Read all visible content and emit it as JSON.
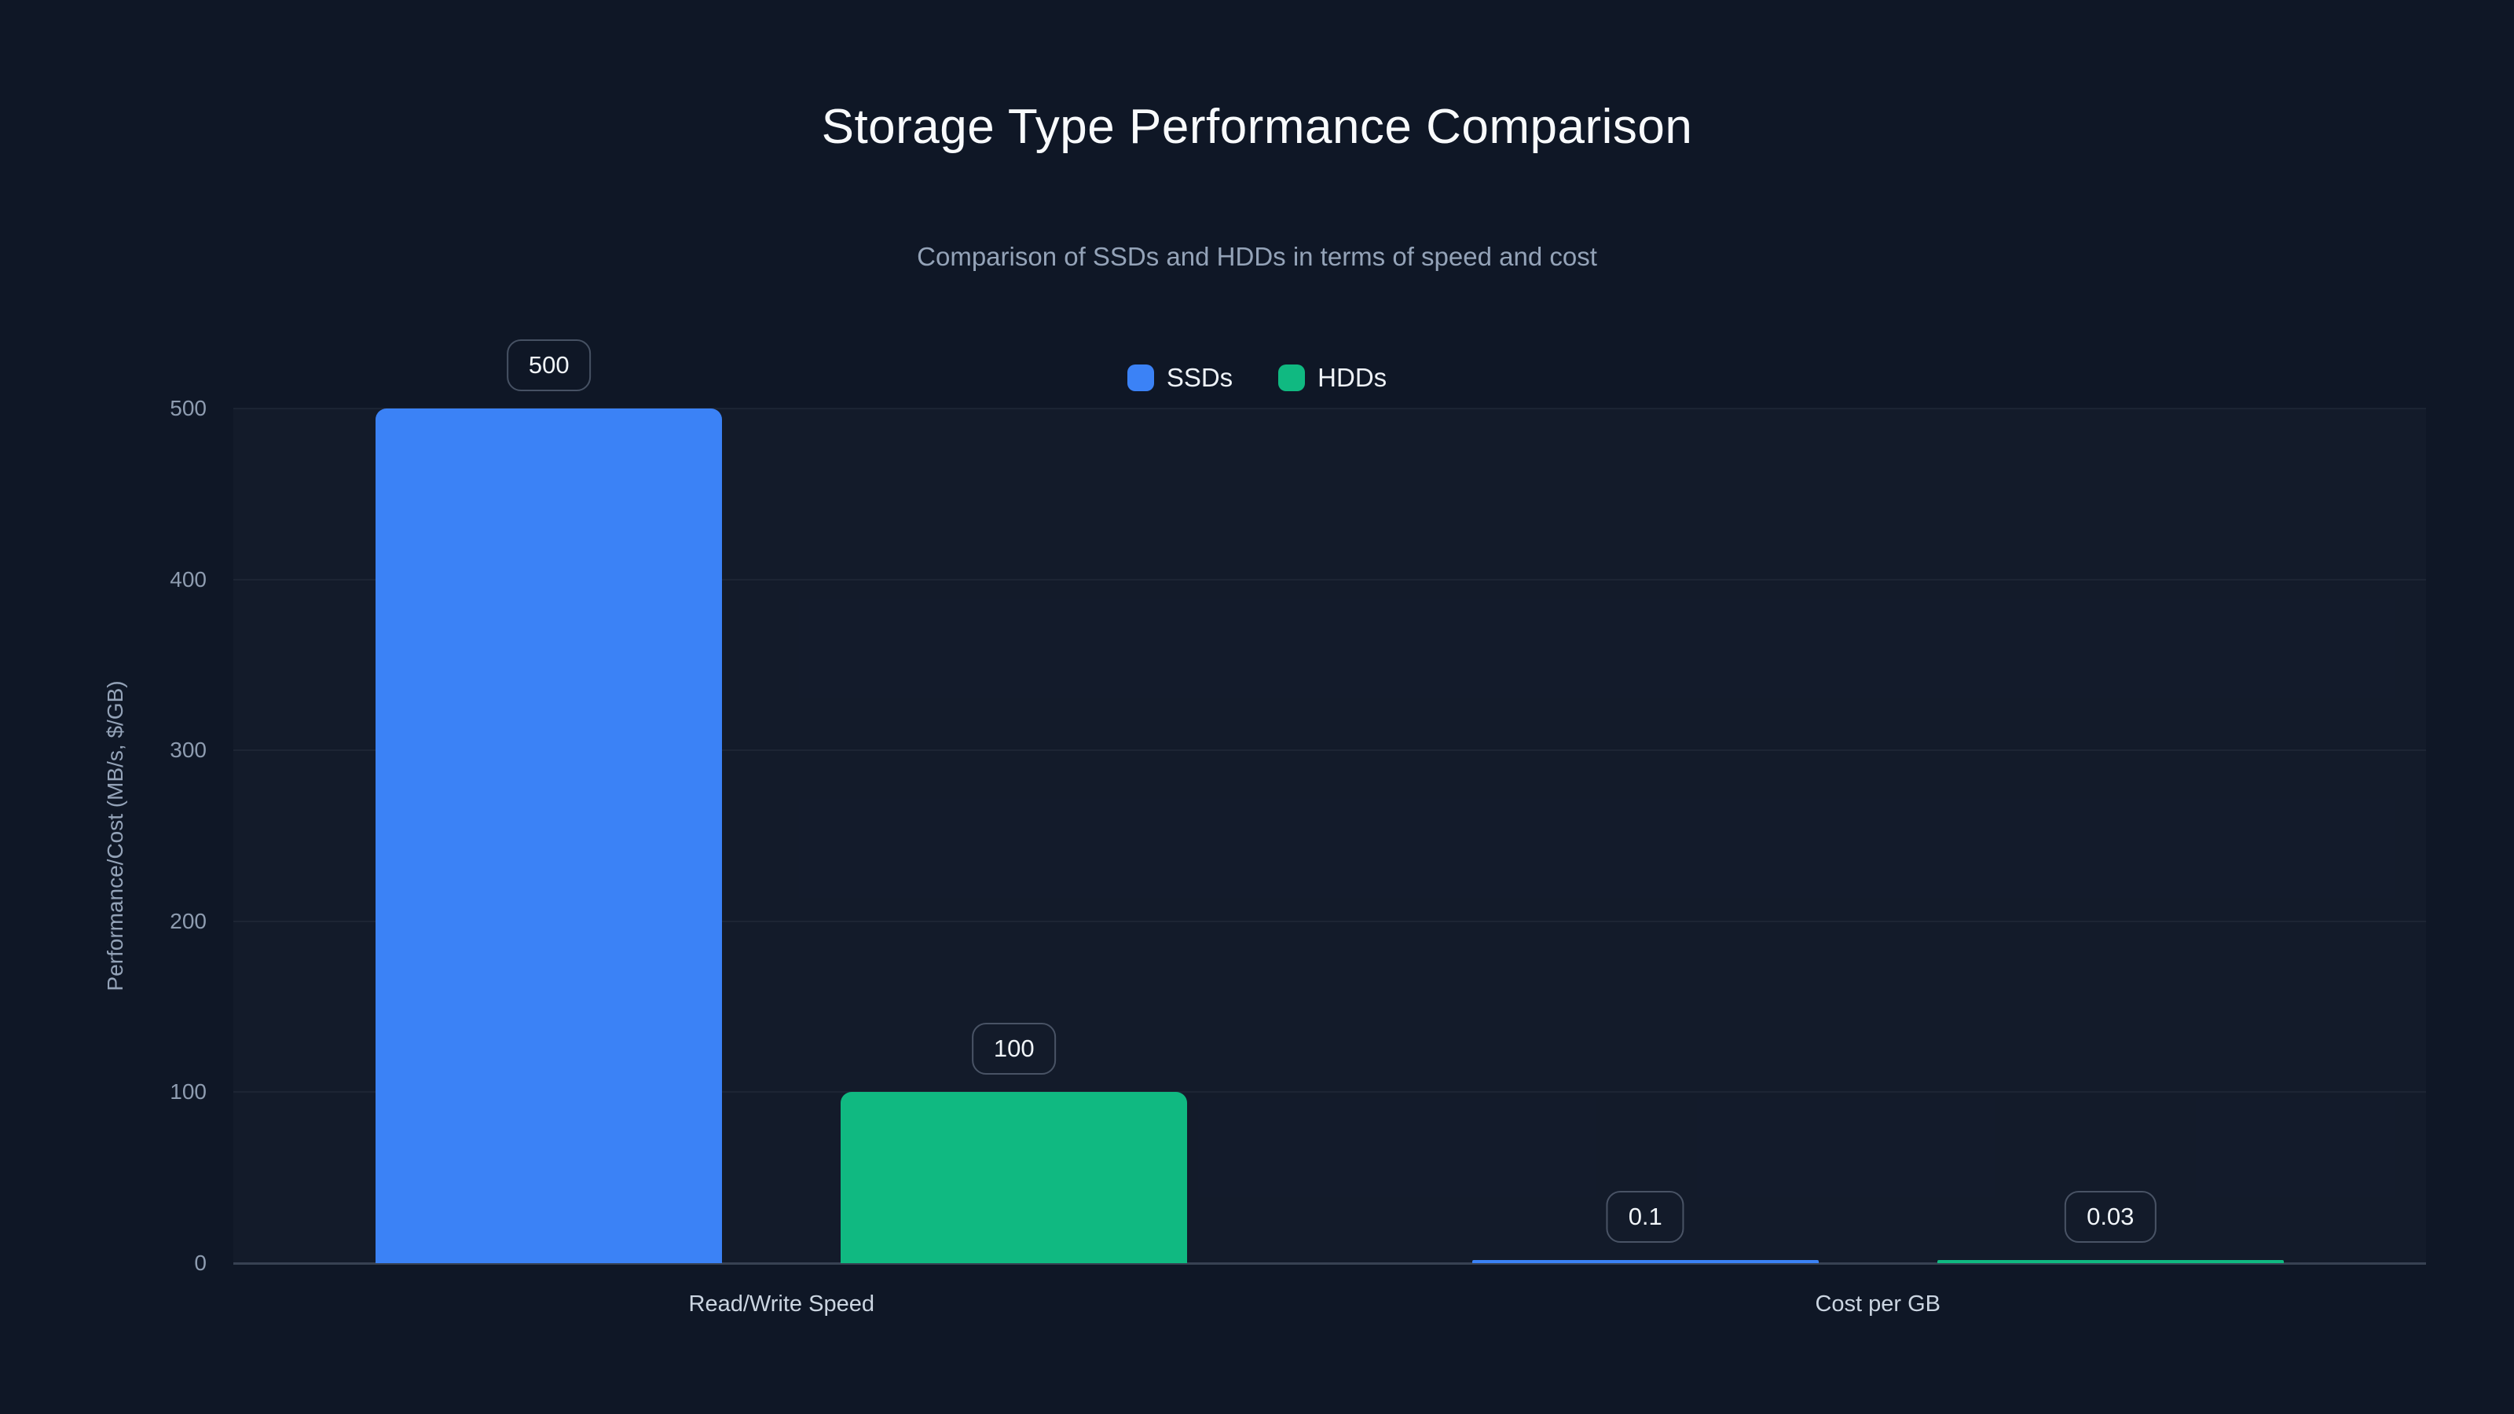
{
  "page": {
    "background": "#0f1726"
  },
  "chart": {
    "title": "Storage Type Performance Comparison",
    "subtitle": "Comparison of SSDs and HDDs in terms of speed and cost",
    "y_axis_label": "Performance/Cost (MB/s, $/GB)"
  },
  "chart_data": {
    "type": "bar",
    "title": "Storage Type Performance Comparison",
    "subtitle": "Comparison of SSDs and HDDs in terms of speed and cost",
    "categories": [
      "Read/Write Speed",
      "Cost per GB"
    ],
    "series": [
      {
        "name": "SSDs",
        "color": "#3b82f6",
        "values": [
          500,
          0.1
        ],
        "value_labels": [
          "500",
          "0.1"
        ]
      },
      {
        "name": "HDDs",
        "color": "#10b981",
        "values": [
          100,
          0.03
        ],
        "value_labels": [
          "100",
          "0.03"
        ]
      }
    ],
    "xlabel": "",
    "ylabel": "Performance/Cost (MB/s, $/GB)",
    "ylim": [
      0,
      500
    ],
    "yticks": [
      0,
      100,
      200,
      300,
      400,
      500
    ],
    "grid": true,
    "legend_position": "top-center",
    "background_color": "#0f1726",
    "value_label_style": "outlined-rounded-pill"
  }
}
